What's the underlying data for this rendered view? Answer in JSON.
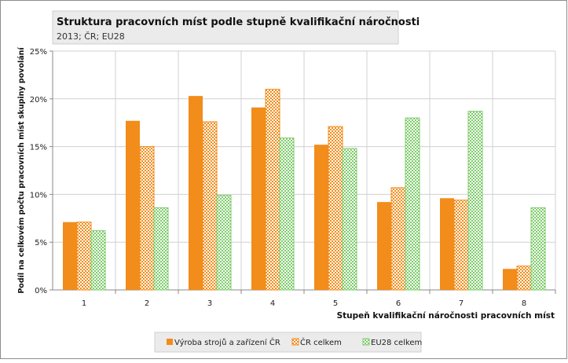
{
  "chart_data": {
    "type": "bar",
    "title": "Struktura pracovních míst podle stupně kvalifikační náročnosti",
    "subtitle": "2013; ČR; EU28",
    "xlabel": "Stupeň kvalifikační náročnosti pracovních míst",
    "ylabel": "Podíl na celkovém počtu pracovních míst skupiny povolání",
    "ylim": [
      0,
      25
    ],
    "yticks": [
      "0%",
      "5%",
      "10%",
      "15%",
      "20%",
      "25%"
    ],
    "categories": [
      "1",
      "2",
      "3",
      "4",
      "5",
      "6",
      "7",
      "8"
    ],
    "grid": true,
    "legend": "bottom",
    "series": [
      {
        "name": "Výroba strojů a zařízení ČR",
        "color": "#f28c1a",
        "pattern": "solid",
        "values": [
          7.1,
          17.7,
          20.3,
          19.1,
          15.2,
          9.2,
          9.6,
          2.2
        ]
      },
      {
        "name": "ČR celkem",
        "color": "#f28c1a",
        "pattern": "checker",
        "values": [
          7.1,
          15.0,
          17.6,
          21.0,
          17.1,
          10.7,
          9.4,
          2.5
        ]
      },
      {
        "name": "EU28 celkem",
        "color": "#7dcc6a",
        "pattern": "checker",
        "values": [
          6.2,
          8.6,
          9.9,
          15.9,
          14.8,
          18.0,
          18.7,
          8.6
        ]
      }
    ]
  }
}
